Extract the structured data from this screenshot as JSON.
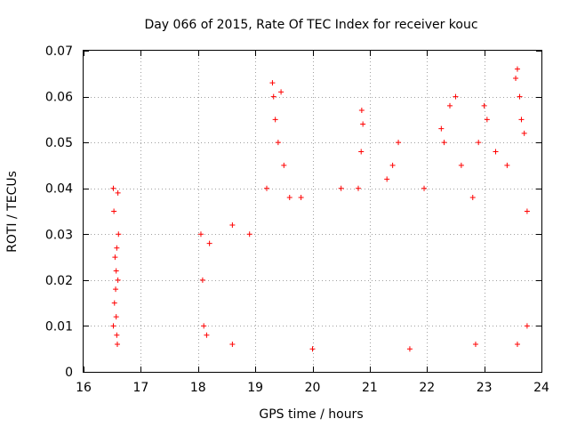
{
  "chart_data": {
    "type": "scatter",
    "title": "Day 066 of 2015, Rate Of TEC Index for receiver kouc",
    "xlabel": "GPS time / hours",
    "ylabel": "ROTI / TECUs",
    "xlim": [
      16,
      24
    ],
    "ylim": [
      0,
      0.07
    ],
    "xticks": [
      16,
      17,
      18,
      19,
      20,
      21,
      22,
      23,
      24
    ],
    "xtick_labels": [
      "16",
      "17",
      "18",
      "19",
      "20",
      "21",
      "22",
      "23",
      "24"
    ],
    "yticks": [
      0,
      0.01,
      0.02,
      0.03,
      0.04,
      0.05,
      0.06,
      0.07
    ],
    "ytick_labels": [
      "0",
      "0.01",
      "0.02",
      "0.03",
      "0.04",
      "0.05",
      "0.06",
      "0.07"
    ],
    "grid": true,
    "marker": "+",
    "color": "#ff0000",
    "series": [
      {
        "name": "ROTI",
        "points": [
          [
            16.52,
            0.04
          ],
          [
            16.53,
            0.035
          ],
          [
            16.55,
            0.025
          ],
          [
            16.56,
            0.018
          ],
          [
            16.57,
            0.012
          ],
          [
            16.58,
            0.008
          ],
          [
            16.59,
            0.006
          ],
          [
            16.6,
            0.039
          ],
          [
            16.61,
            0.03
          ],
          [
            16.54,
            0.015
          ],
          [
            16.57,
            0.022
          ],
          [
            16.6,
            0.02
          ],
          [
            16.52,
            0.01
          ],
          [
            16.58,
            0.027
          ],
          [
            18.05,
            0.03
          ],
          [
            18.08,
            0.02
          ],
          [
            18.1,
            0.01
          ],
          [
            18.15,
            0.008
          ],
          [
            18.2,
            0.028
          ],
          [
            18.6,
            0.032
          ],
          [
            18.6,
            0.006
          ],
          [
            18.9,
            0.03
          ],
          [
            19.2,
            0.04
          ],
          [
            19.3,
            0.063
          ],
          [
            19.32,
            0.06
          ],
          [
            19.35,
            0.055
          ],
          [
            19.4,
            0.05
          ],
          [
            19.45,
            0.061
          ],
          [
            19.5,
            0.045
          ],
          [
            19.6,
            0.038
          ],
          [
            19.8,
            0.038
          ],
          [
            20.0,
            0.005
          ],
          [
            20.5,
            0.04
          ],
          [
            20.8,
            0.04
          ],
          [
            20.86,
            0.057
          ],
          [
            20.88,
            0.054
          ],
          [
            20.85,
            0.048
          ],
          [
            21.3,
            0.042
          ],
          [
            21.5,
            0.05
          ],
          [
            21.4,
            0.045
          ],
          [
            21.7,
            0.005
          ],
          [
            21.95,
            0.04
          ],
          [
            22.25,
            0.053
          ],
          [
            22.3,
            0.05
          ],
          [
            22.4,
            0.058
          ],
          [
            22.5,
            0.06
          ],
          [
            22.6,
            0.045
          ],
          [
            22.8,
            0.038
          ],
          [
            22.9,
            0.05
          ],
          [
            23.0,
            0.058
          ],
          [
            23.05,
            0.055
          ],
          [
            23.2,
            0.048
          ],
          [
            23.4,
            0.045
          ],
          [
            23.55,
            0.064
          ],
          [
            23.58,
            0.066
          ],
          [
            23.62,
            0.06
          ],
          [
            23.65,
            0.055
          ],
          [
            23.7,
            0.052
          ],
          [
            23.75,
            0.035
          ],
          [
            23.75,
            0.01
          ],
          [
            23.58,
            0.006
          ],
          [
            22.85,
            0.006
          ]
        ]
      }
    ]
  }
}
